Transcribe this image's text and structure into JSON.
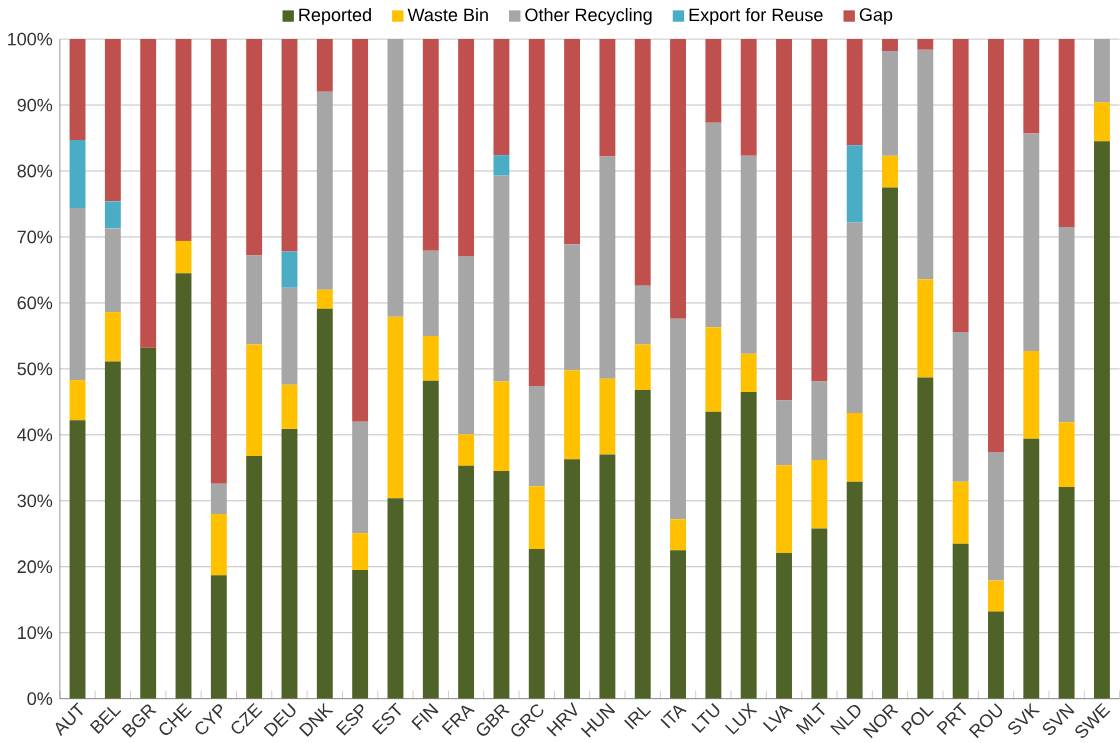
{
  "chart_data": {
    "type": "bar",
    "stacked": true,
    "categories": [
      "AUT",
      "BEL",
      "BGR",
      "CHE",
      "CYP",
      "CZE",
      "DEU",
      "DNK",
      "ESP",
      "EST",
      "FIN",
      "FRA",
      "GBR",
      "GRC",
      "HRV",
      "HUN",
      "IRL",
      "ITA",
      "LTU",
      "LUX",
      "LVA",
      "MLT",
      "NLD",
      "NOR",
      "POL",
      "PRT",
      "ROU",
      "SVK",
      "SVN",
      "SWE"
    ],
    "series": [
      {
        "name": "Reported",
        "color": "#4f6228",
        "values": [
          42.2,
          51.1,
          53.2,
          64.5,
          18.7,
          36.8,
          40.9,
          59.1,
          19.5,
          30.4,
          48.2,
          35.3,
          34.5,
          22.7,
          36.3,
          37,
          46.8,
          22.5,
          43.5,
          46.5,
          22.1,
          25.8,
          32.9,
          77.5,
          48.7,
          23.5,
          13.2,
          39.4,
          32.1,
          84.5
        ]
      },
      {
        "name": "Waste Bin",
        "color": "#ffc000",
        "values": [
          6.1,
          7.5,
          0,
          4.9,
          9.3,
          16.9,
          6.7,
          2.9,
          5.6,
          27.5,
          6.8,
          4.8,
          13.6,
          9.5,
          13.5,
          11.5,
          6.9,
          4.7,
          12.8,
          5.8,
          13.3,
          10.4,
          10.4,
          4.8,
          14.9,
          9.4,
          4.7,
          13.3,
          9.8,
          5.9
        ]
      },
      {
        "name": "Other Recycling",
        "color": "#a6a6a6",
        "values": [
          26.1,
          12.7,
          0,
          0,
          4.6,
          13.5,
          14.7,
          30,
          16.9,
          42.1,
          12.9,
          27,
          31.2,
          15.2,
          19.1,
          33.7,
          8.9,
          30.4,
          31,
          30,
          9.8,
          11.9,
          28.9,
          15.9,
          34.8,
          22.7,
          19.5,
          33,
          29.6,
          9.6
        ]
      },
      {
        "name": "Export for Reuse",
        "color": "#4bacc6",
        "values": [
          10.3,
          4.1,
          0,
          0,
          0,
          0,
          5.5,
          0,
          0,
          0,
          0,
          0,
          3.1,
          0,
          0,
          0,
          0,
          0,
          0,
          0,
          0,
          0,
          11.7,
          0,
          0,
          0,
          0,
          0,
          0,
          0
        ]
      },
      {
        "name": "Gap",
        "color": "#c0504d",
        "values": [
          15.3,
          24.6,
          46.8,
          30.6,
          67.4,
          32.8,
          32.2,
          8,
          58,
          0,
          32.1,
          32.9,
          17.6,
          52.6,
          31.1,
          17.8,
          37.4,
          42.4,
          12.7,
          17.7,
          54.8,
          51.9,
          16.1,
          1.8,
          1.6,
          44.4,
          62.6,
          14.3,
          28.5,
          0
        ]
      }
    ],
    "ylim": [
      0,
      100
    ],
    "yticks": [
      {
        "value": 0,
        "label": "0%"
      },
      {
        "value": 10,
        "label": "10%"
      },
      {
        "value": 20,
        "label": "20%"
      },
      {
        "value": 30,
        "label": "30%"
      },
      {
        "value": 40,
        "label": "40%"
      },
      {
        "value": 50,
        "label": "50%"
      },
      {
        "value": 60,
        "label": "60%"
      },
      {
        "value": 70,
        "label": "70%"
      },
      {
        "value": 80,
        "label": "80%"
      },
      {
        "value": 90,
        "label": "90%"
      },
      {
        "value": 100,
        "label": "100%"
      }
    ],
    "grid": "y",
    "legend": "top"
  }
}
